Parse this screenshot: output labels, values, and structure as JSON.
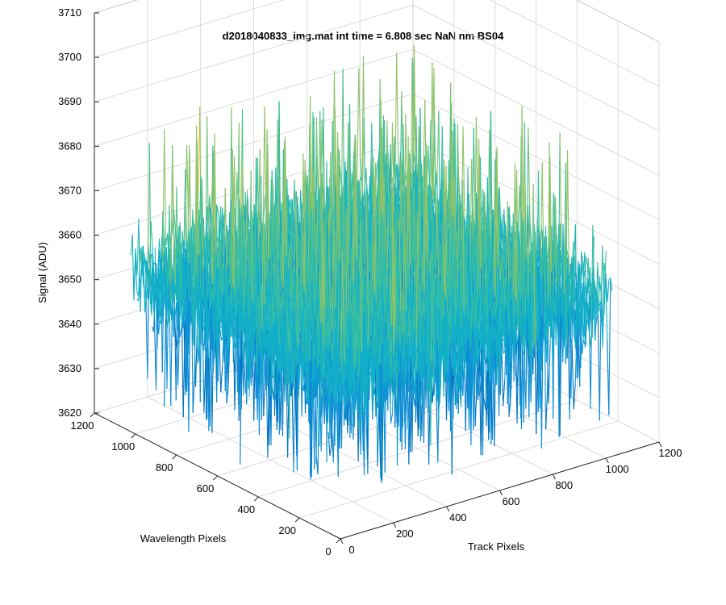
{
  "chart_data": {
    "type": "surface",
    "title": "d2018040833_img.mat int time = 6.808 sec  NaN nm BS04",
    "xlabel": "Track Pixels",
    "ylabel": "Wavelength Pixels",
    "zlabel": "Signal (ADU)",
    "xlim": [
      0,
      1200
    ],
    "ylim": [
      0,
      1200
    ],
    "zlim": [
      3620,
      3710
    ],
    "x_ticks": [
      0,
      200,
      400,
      600,
      800,
      1000,
      1200
    ],
    "y_ticks": [
      0,
      200,
      400,
      600,
      800,
      1000,
      1200
    ],
    "z_ticks": [
      3620,
      3630,
      3640,
      3650,
      3660,
      3670,
      3680,
      3690,
      3700,
      3710
    ],
    "grid": true,
    "colormap": "parula",
    "colors": [
      "#0072bd",
      "#0f8fd6",
      "#13b0c8",
      "#3bbfa0",
      "#8fc36a",
      "#e8c53c"
    ],
    "data_extent": {
      "x": [
        1,
        1024
      ],
      "y": [
        1,
        1024
      ]
    },
    "signal_mean": 3655,
    "signal_typical_range": [
      3630,
      3690
    ],
    "signal_extremes": [
      3620,
      3706
    ]
  }
}
